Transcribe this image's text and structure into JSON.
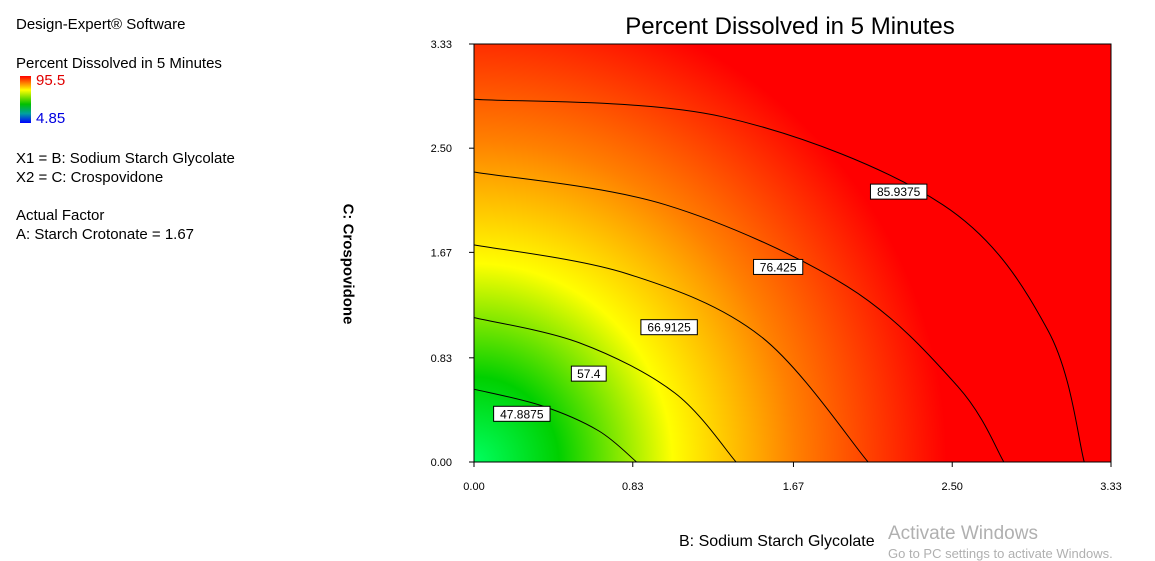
{
  "software_label": "Design-Expert® Software",
  "response_label": "Percent Dissolved in 5 Minutes",
  "legend": {
    "max": "95.5",
    "min": "4.85"
  },
  "factors": {
    "x1": "X1 = B: Sodium Starch Glycolate",
    "x2": "X2 = C: Crospovidone"
  },
  "actual_factor": {
    "heading": "Actual Factor",
    "value": "A: Starch Crotonate = 1.67"
  },
  "watermark": {
    "line1": "Activate Windows",
    "line2": "Go to PC settings to activate Windows."
  },
  "chart_data": {
    "type": "heatmap",
    "subtype": "contour",
    "title": "Percent Dissolved in 5 Minutes",
    "xlabel": "B: Sodium Starch Glycolate",
    "ylabel": "C: Crospovidone",
    "xlim": [
      0,
      3.33
    ],
    "ylim": [
      0,
      3.33
    ],
    "x_ticks": [
      "0.00",
      "0.83",
      "1.67",
      "2.50",
      "3.33"
    ],
    "y_ticks": [
      "0.00",
      "0.83",
      "1.67",
      "2.50",
      "3.33"
    ],
    "colorscale": [
      "#00ff60",
      "#00d000",
      "#ffff00",
      "#ff8000",
      "#ff0000"
    ],
    "contours": [
      {
        "level": "47.8875",
        "points": [
          [
            0,
            0.58
          ],
          [
            0.35,
            0.45
          ],
          [
            0.65,
            0.25
          ],
          [
            0.85,
            0
          ]
        ]
      },
      {
        "level": "57.4",
        "points": [
          [
            0,
            1.15
          ],
          [
            0.55,
            0.95
          ],
          [
            1.05,
            0.55
          ],
          [
            1.37,
            0
          ]
        ]
      },
      {
        "level": "66.9125",
        "points": [
          [
            0,
            1.73
          ],
          [
            0.8,
            1.5
          ],
          [
            1.5,
            1.0
          ],
          [
            2.06,
            0
          ]
        ]
      },
      {
        "level": "76.425",
        "points": [
          [
            0,
            2.31
          ],
          [
            1.0,
            2.05
          ],
          [
            1.95,
            1.4
          ],
          [
            2.53,
            0.6
          ],
          [
            2.77,
            0
          ]
        ]
      },
      {
        "level": "85.9375",
        "points": [
          [
            0,
            2.89
          ],
          [
            1.3,
            2.75
          ],
          [
            2.45,
            2.05
          ],
          [
            3.0,
            1.05
          ],
          [
            3.19,
            0
          ]
        ]
      }
    ],
    "contour_labels": [
      {
        "text": "85.9375",
        "x": 2.22,
        "y": 2.15
      },
      {
        "text": "76.425",
        "x": 1.59,
        "y": 1.55
      },
      {
        "text": "66.9125",
        "x": 1.02,
        "y": 1.07
      },
      {
        "text": "57.4",
        "x": 0.6,
        "y": 0.7
      },
      {
        "text": "47.8875",
        "x": 0.25,
        "y": 0.38
      }
    ]
  }
}
